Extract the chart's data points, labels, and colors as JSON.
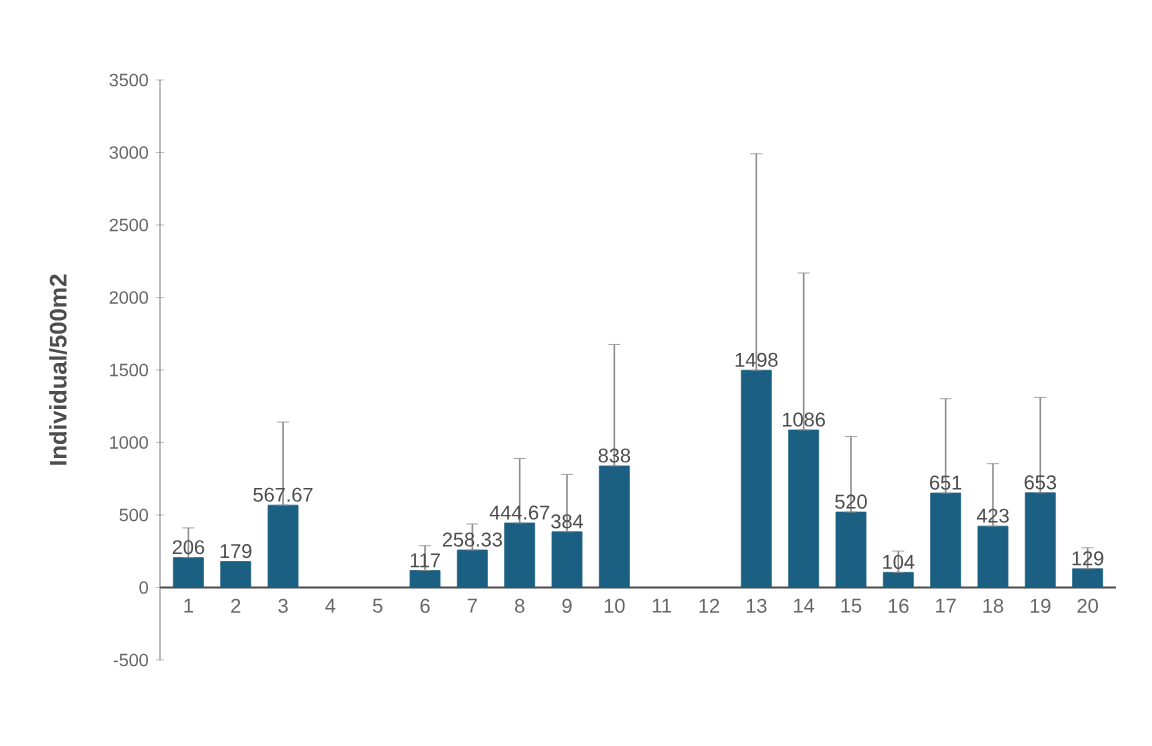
{
  "chart_data": {
    "type": "bar",
    "ylabel": "Individual/500m2",
    "categories": [
      "1",
      "2",
      "3",
      "4",
      "5",
      "6",
      "7",
      "8",
      "9",
      "10",
      "11",
      "12",
      "13",
      "14",
      "15",
      "16",
      "17",
      "18",
      "19",
      "20"
    ],
    "values": [
      206,
      179,
      567.67,
      null,
      null,
      117,
      258.33,
      444.67,
      384,
      838,
      null,
      null,
      1498,
      1086,
      520,
      104,
      651,
      423,
      653,
      129
    ],
    "value_labels": [
      "206",
      "179",
      "567.67",
      null,
      null,
      "117",
      "258.33",
      "444.67",
      "384",
      "838",
      null,
      null,
      "1498",
      "1086",
      "520",
      "104",
      "651",
      "423",
      "653",
      "129"
    ],
    "errors": [
      [
        206,
        411
      ],
      null,
      [
        567.67,
        1141
      ],
      null,
      null,
      [
        117,
        288
      ],
      [
        258.33,
        438
      ],
      [
        444.67,
        890
      ],
      [
        384,
        780
      ],
      [
        838,
        1676
      ],
      null,
      null,
      [
        1498,
        2991
      ],
      [
        1086,
        2169
      ],
      [
        520,
        1041
      ],
      [
        104,
        251
      ],
      [
        651,
        1302
      ],
      [
        423,
        854
      ],
      [
        653,
        1311
      ],
      [
        129,
        274
      ]
    ],
    "color": "#1b5f82",
    "ylim": [
      -500,
      3500
    ],
    "yticks": [
      -500,
      0,
      500,
      1000,
      1500,
      2000,
      2500,
      3000,
      3500
    ],
    "grid": false
  }
}
